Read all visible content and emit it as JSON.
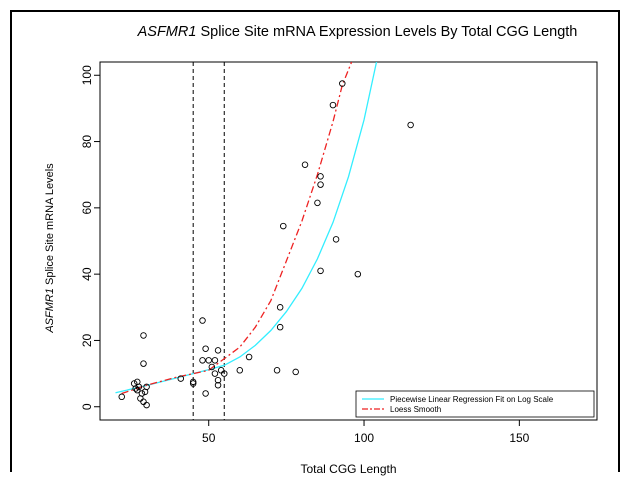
{
  "chart_data": {
    "type": "scatter",
    "title_gene": "ASFMR1",
    "title_rest": " Splice Site mRNA Expression Levels By Total CGG Length",
    "xlabel": "Total CGG Length",
    "ylabel_gene": "ASFMR1",
    "ylabel_rest": " Splice Site mRNA Levels",
    "xlim": [
      15,
      175
    ],
    "ylim": [
      -4,
      104
    ],
    "xticks": [
      50,
      100,
      150
    ],
    "yticks": [
      0,
      20,
      40,
      60,
      80,
      100
    ],
    "vlines": [
      45,
      55
    ],
    "points": [
      {
        "x": 22,
        "y": 3
      },
      {
        "x": 26,
        "y": 7
      },
      {
        "x": 26.5,
        "y": 5.5
      },
      {
        "x": 27,
        "y": 5
      },
      {
        "x": 27.5,
        "y": 6
      },
      {
        "x": 28,
        "y": 2.5
      },
      {
        "x": 28.5,
        "y": 4
      },
      {
        "x": 29,
        "y": 1.5
      },
      {
        "x": 29,
        "y": 21.5
      },
      {
        "x": 29,
        "y": 13
      },
      {
        "x": 29.5,
        "y": 4.5
      },
      {
        "x": 30,
        "y": 6
      },
      {
        "x": 30,
        "y": 0.5
      },
      {
        "x": 27,
        "y": 7.5
      },
      {
        "x": 41,
        "y": 8.5
      },
      {
        "x": 45,
        "y": 7.5
      },
      {
        "x": 45,
        "y": 7
      },
      {
        "x": 48,
        "y": 26
      },
      {
        "x": 48,
        "y": 14
      },
      {
        "x": 49,
        "y": 17.5
      },
      {
        "x": 49,
        "y": 4
      },
      {
        "x": 50,
        "y": 14
      },
      {
        "x": 51,
        "y": 12
      },
      {
        "x": 52,
        "y": 10
      },
      {
        "x": 52,
        "y": 14
      },
      {
        "x": 53,
        "y": 17
      },
      {
        "x": 53,
        "y": 8
      },
      {
        "x": 53,
        "y": 6.5
      },
      {
        "x": 54,
        "y": 11
      },
      {
        "x": 55,
        "y": 10
      },
      {
        "x": 60,
        "y": 11
      },
      {
        "x": 63,
        "y": 15
      },
      {
        "x": 72,
        "y": 11
      },
      {
        "x": 73,
        "y": 30
      },
      {
        "x": 73,
        "y": 24
      },
      {
        "x": 74,
        "y": 54.5
      },
      {
        "x": 78,
        "y": 10.5
      },
      {
        "x": 81,
        "y": 73
      },
      {
        "x": 85,
        "y": 61.5
      },
      {
        "x": 86,
        "y": 67
      },
      {
        "x": 86,
        "y": 69.5
      },
      {
        "x": 86,
        "y": 41
      },
      {
        "x": 90,
        "y": 91
      },
      {
        "x": 91,
        "y": 50.5
      },
      {
        "x": 93,
        "y": 97.5
      },
      {
        "x": 98,
        "y": 40
      },
      {
        "x": 115,
        "y": 85
      }
    ],
    "series": [
      {
        "name": "Piecewise Linear Regression Fit on Log Scale",
        "color": "#33eeff",
        "style": "solid",
        "x": [
          20,
          30,
          40,
          50,
          55,
          60,
          65,
          70,
          75,
          80,
          85,
          90,
          95,
          100,
          104
        ],
        "y": [
          4.2,
          6.4,
          8.8,
          11.2,
          12.5,
          15.0,
          18.5,
          23.0,
          28.7,
          35.7,
          44.6,
          55.6,
          69.4,
          86.5,
          104
        ]
      },
      {
        "name": "Loess Smooth",
        "color": "#ee2222",
        "style": "dashdot",
        "x": [
          22,
          30,
          40,
          50,
          60,
          65,
          70,
          75,
          80,
          85,
          90,
          93,
          96
        ],
        "y": [
          4.0,
          6.5,
          9.0,
          11.0,
          18.0,
          24.0,
          32.0,
          44.0,
          56.0,
          70.0,
          86.0,
          97.0,
          104
        ]
      }
    ],
    "legend_position": "bottom-right"
  }
}
